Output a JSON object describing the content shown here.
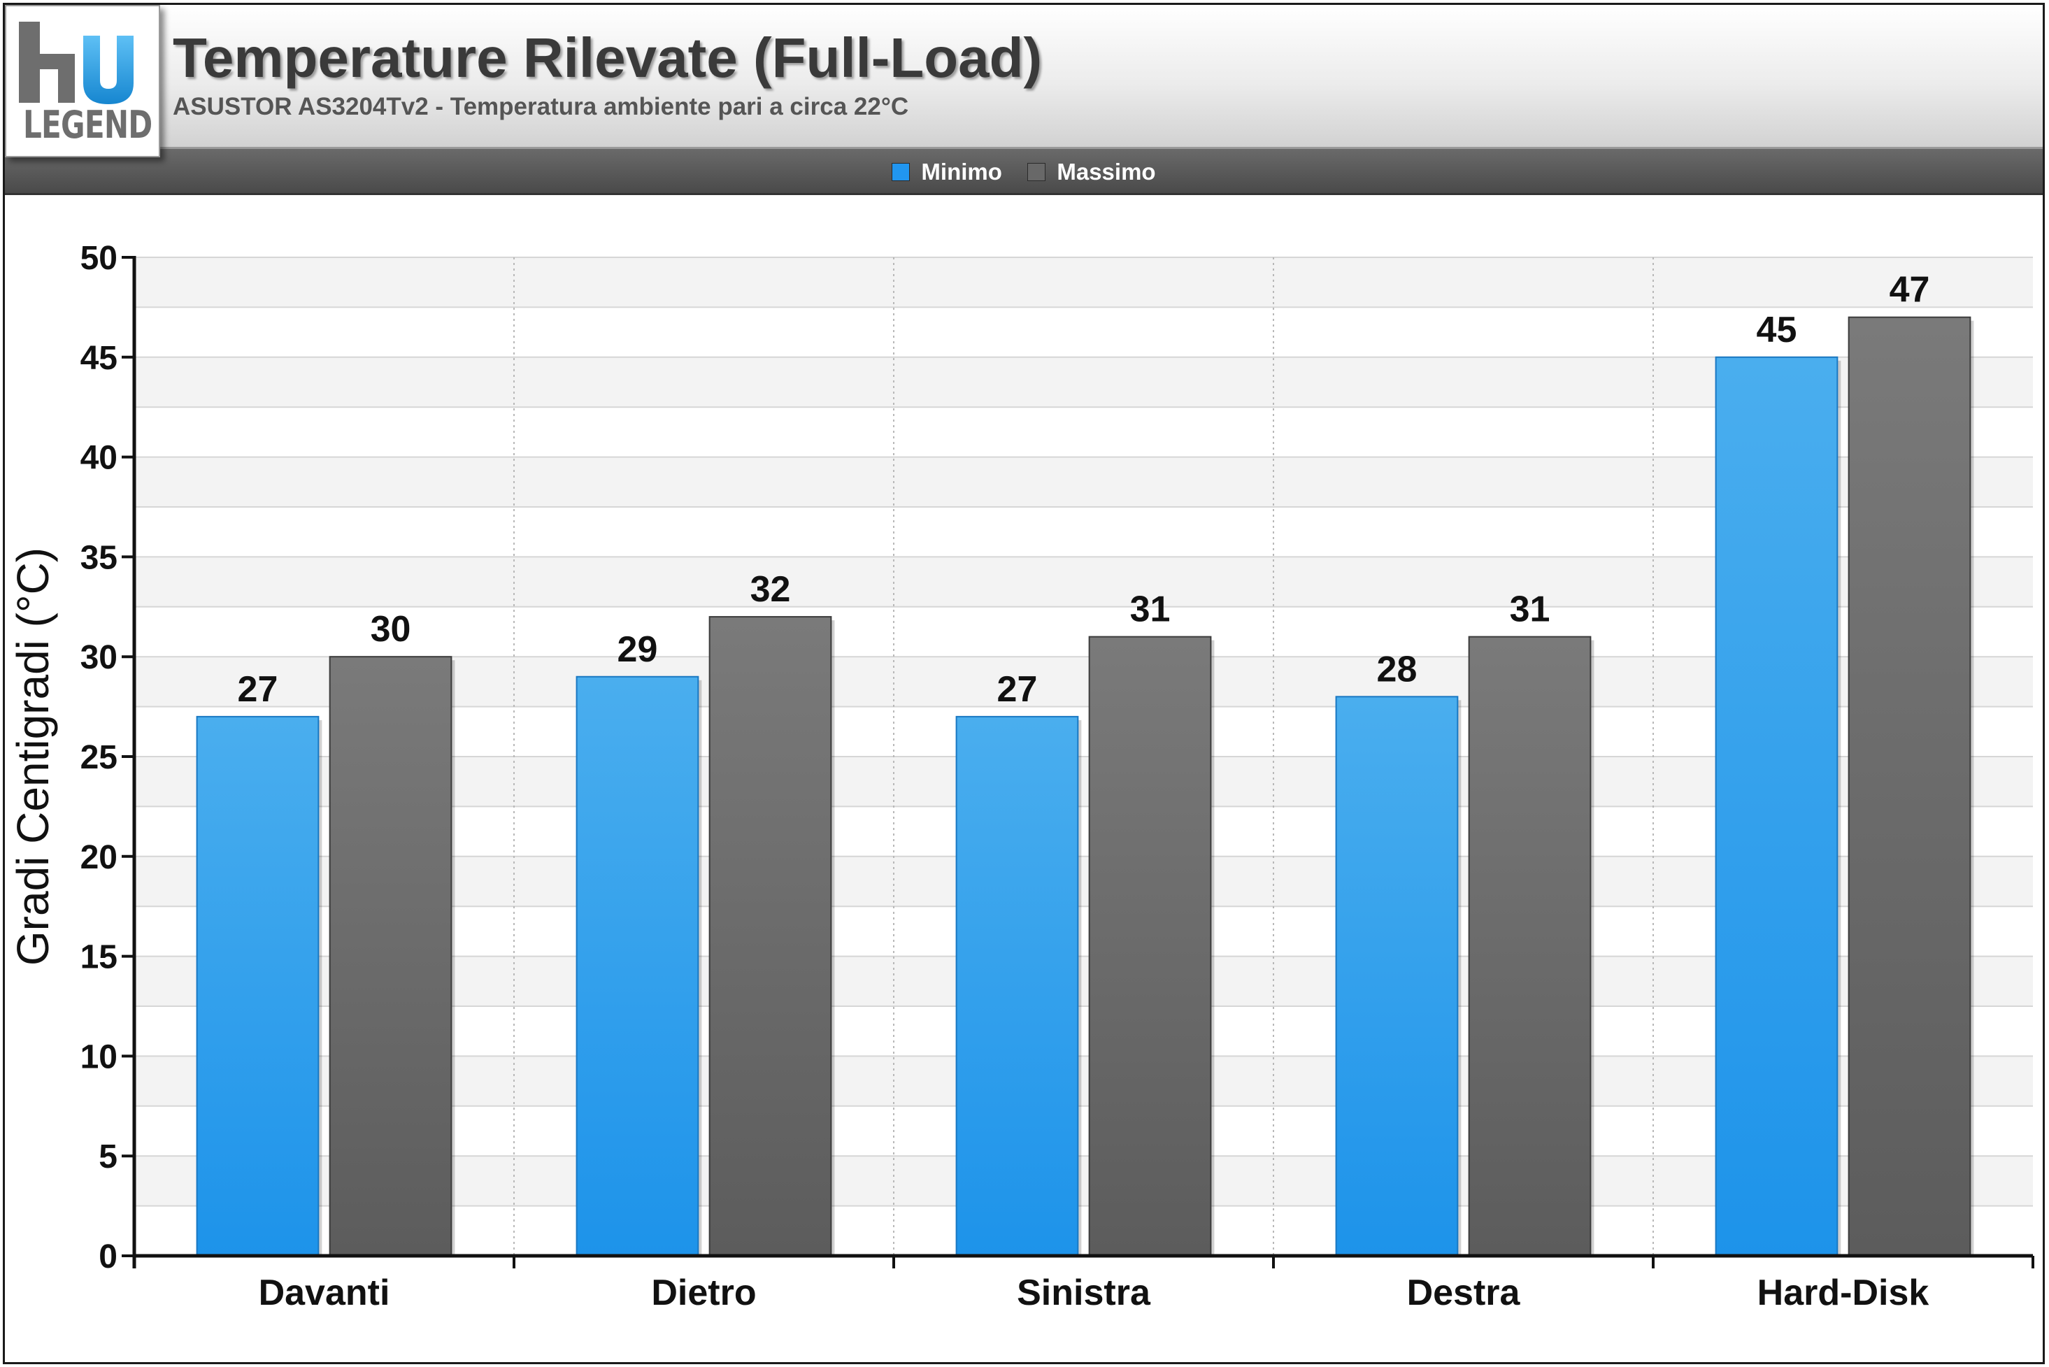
{
  "logo": {
    "text": "LEGEND"
  },
  "header": {
    "title": "Temperature Rilevate (Full-Load)",
    "subtitle": "ASUSTOR AS3204Tv2 - Temperatura ambiente pari a circa 22°C"
  },
  "colors": {
    "minimo": "#2196f0",
    "massimo": "#686868"
  },
  "chart_data": {
    "type": "bar",
    "title": "Temperature Rilevate (Full-Load)",
    "subtitle": "ASUSTOR AS3204Tv2 - Temperatura ambiente pari a circa 22°C",
    "xlabel": "",
    "ylabel": "Gradi Centigradi (°C)",
    "categories": [
      "Davanti",
      "Dietro",
      "Sinistra",
      "Destra",
      "Hard-Disk"
    ],
    "series": [
      {
        "name": "Minimo",
        "values": [
          27,
          29,
          27,
          28,
          45
        ],
        "color": "#2196f0"
      },
      {
        "name": "Massimo",
        "values": [
          30,
          32,
          31,
          31,
          47
        ],
        "color": "#686868"
      }
    ],
    "ylim": [
      0,
      50
    ],
    "yticks": [
      0,
      5,
      10,
      15,
      20,
      25,
      30,
      35,
      40,
      45,
      50
    ],
    "grid": true,
    "legend": "top-center",
    "data_labels": true
  }
}
